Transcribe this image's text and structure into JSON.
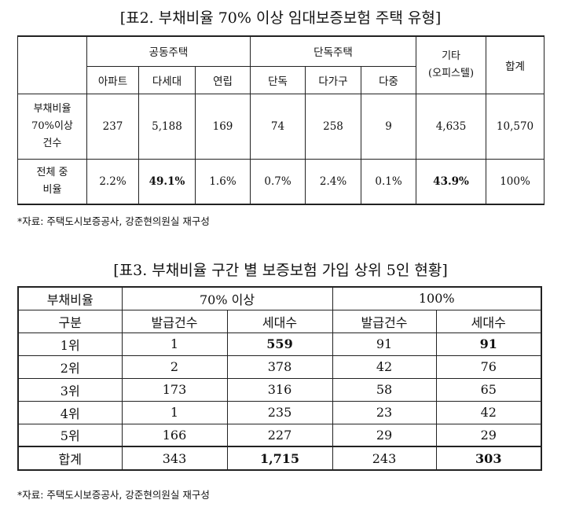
{
  "table1": {
    "title": "[표2. 부채비율 70% 이상 임대보증보험 주택 유형]",
    "group_apartment": "공동주택",
    "group_detached": "단독주택",
    "col_etc": "기타\n(오피스텔)",
    "col_total": "합계",
    "sub_cols": [
      "아파트",
      "다세대",
      "연립",
      "단독",
      "다가구",
      "다중"
    ],
    "row_count_label": "부채비율\n70%이상\n건수",
    "row_count_values": [
      "237",
      "5,188",
      "169",
      "74",
      "258",
      "9",
      "4,635",
      "10,570"
    ],
    "row_ratio_label": "전체 중\n비율",
    "row_ratio_values": [
      "2.2%",
      "49.1%",
      "1.6%",
      "0.7%",
      "2.4%",
      "0.1%",
      "43.9%",
      "100%"
    ],
    "note": "*자료: 주택도시보증공사, 강준현의원실 재구성"
  },
  "table2": {
    "title": "[표3. 부채비율 구간 별 보증보험 가입 상위 5인 현황]",
    "header_debt_ratio": "부채비율",
    "header_70": "70% 이상",
    "header_100": "100%",
    "header_div": "구분",
    "header_issued_70": "발급건수",
    "header_households_70": "세대수",
    "header_issued_100": "발급건수",
    "header_households_100": "세대수",
    "rows": [
      {
        "rank": "1위",
        "issued70": "1",
        "households70": "559",
        "issued100": "91",
        "households100": "91"
      },
      {
        "rank": "2위",
        "issued70": "2",
        "households70": "378",
        "issued100": "42",
        "households100": "76"
      },
      {
        "rank": "3위",
        "issued70": "173",
        "households70": "316",
        "issued100": "58",
        "households100": "65"
      },
      {
        "rank": "4위",
        "issued70": "1",
        "households70": "235",
        "issued100": "23",
        "households100": "42"
      },
      {
        "rank": "5위",
        "issued70": "166",
        "households70": "227",
        "issued100": "29",
        "households100": "29"
      }
    ],
    "total": {
      "rank": "합계",
      "issued70": "343",
      "households70": "1,715",
      "issued100": "243",
      "households100": "303"
    },
    "note": "*자료: 주택도시보증공사, 강준현의원실 재구성"
  }
}
